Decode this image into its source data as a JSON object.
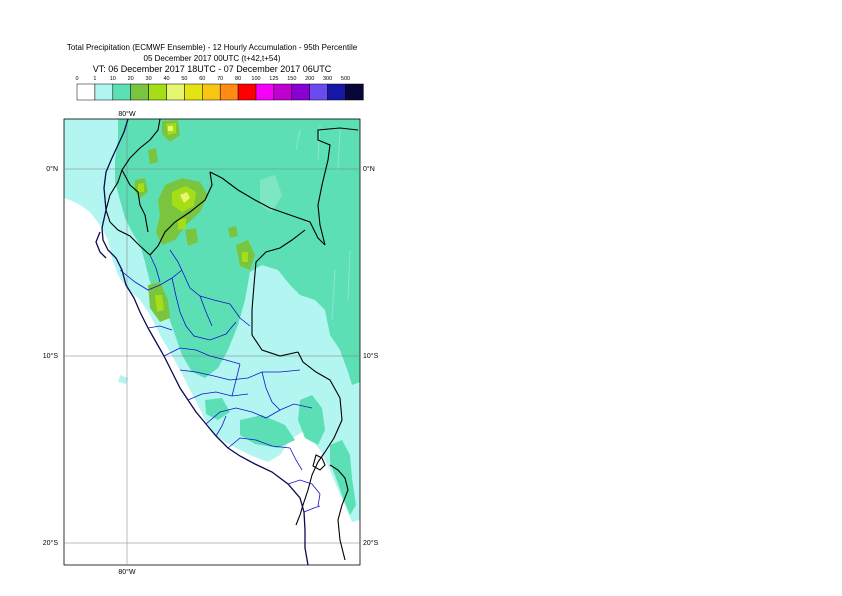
{
  "header": {
    "title": "Total Precipitation (ECMWF Ensemble) - 12 Hourly Accumulation - 95th Percentile",
    "base_time": "05 December 2017 00UTC (t+42,t+54)",
    "valid_time": "VT: 06 December 2017 18UTC - 07 December 2017 06UTC"
  },
  "legend": {
    "thresholds": [
      "0",
      "1",
      "10",
      "20",
      "30",
      "40",
      "50",
      "60",
      "70",
      "80",
      "100",
      "125",
      "150",
      "200",
      "300",
      "500"
    ],
    "colors": [
      "#ffffff",
      "#b3f5f0",
      "#5ddfb6",
      "#7ac540",
      "#a5dd16",
      "#e6f76f",
      "#e4e414",
      "#f7c613",
      "#fe8b14",
      "#ff0000",
      "#f700f7",
      "#c000d0",
      "#8a00d2",
      "#6a4bf0",
      "#1818a6",
      "#080838"
    ]
  },
  "map": {
    "lon_labels": {
      "top": "80°W",
      "bottom": "80°W"
    },
    "lat_labels": [
      "0°N",
      "10°S",
      "20°S"
    ],
    "colors": {
      "light": "#b3f5f0",
      "medium": "#5ddfb6",
      "green": "#7ac540",
      "lime": "#a5dd16",
      "yellow": "#e6f76f",
      "country_border": "#000000",
      "region_border": "#1414c8",
      "coast": "#0a0a50"
    }
  }
}
